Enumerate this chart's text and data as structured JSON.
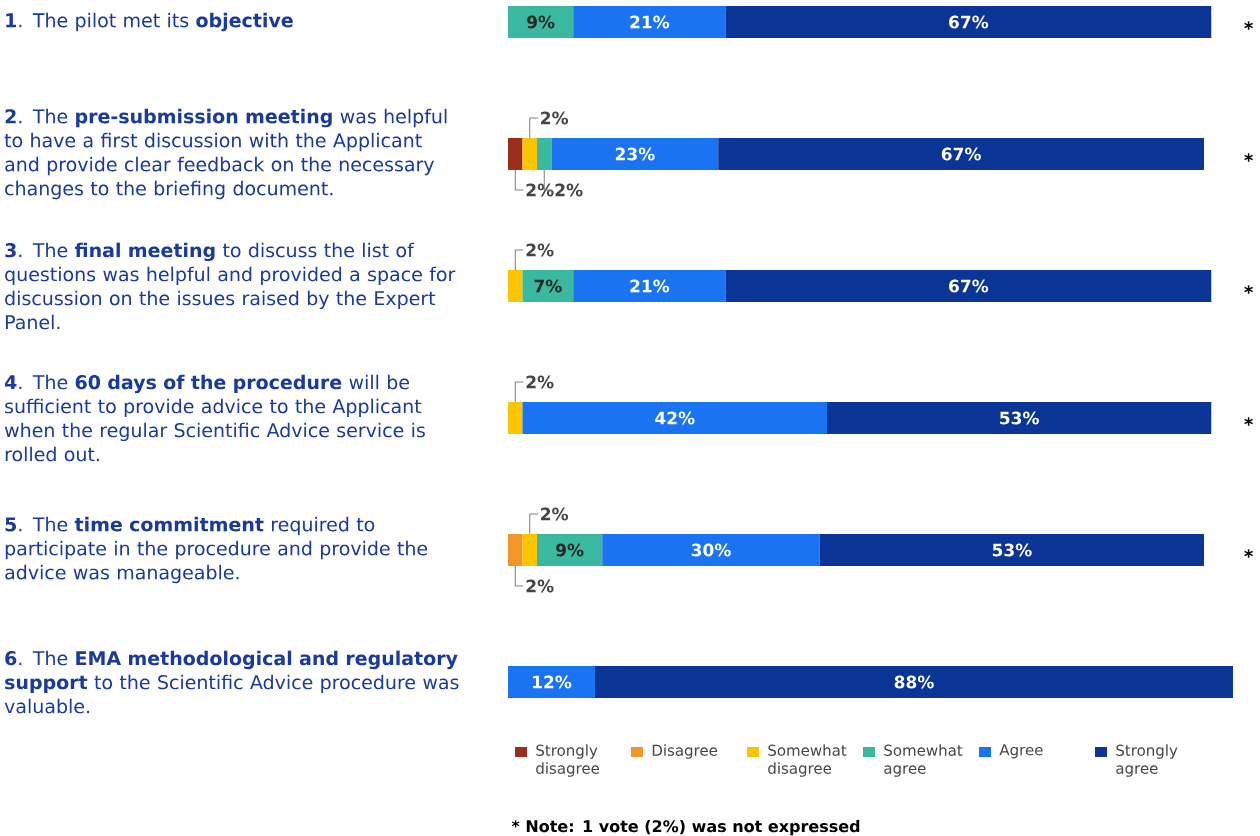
{
  "chart_data": {
    "type": "bar",
    "orientation": "horizontal",
    "stacked": true,
    "legend": "bottom",
    "categories": [
      "**1**. The pilot met its **objective**",
      "**2**. The **pre-submission meeting** was helpful to have a first discussion with the Applicant and provide clear feedback on the necessary changes to the briefing document.",
      "**3**. The **final meeting** to discuss the list of questions was helpful and provided a space for discussion on the issues raised by the Expert Panel.",
      "**4**. The **60 days of the procedure** will be sufficient to provide advice to the Applicant when the regular Scientific Advice service is rolled out.",
      "**5**. The **time commitment** required to participate in the procedure and provide the advice was manageable.",
      "**6**. The **EMA methodological and regulatory support** to the Scientific Advice procedure was valuable."
    ],
    "series": [
      {
        "name": "Strongly disagree",
        "color": "#9b2f1e",
        "values": [
          null,
          2,
          null,
          null,
          null,
          null
        ],
        "value_labels": [
          null,
          "2%",
          null,
          null,
          null,
          null
        ]
      },
      {
        "name": "Disagree",
        "color": "#f0962a",
        "values": [
          null,
          null,
          null,
          null,
          2,
          null
        ],
        "value_labels": [
          null,
          null,
          null,
          null,
          "2%",
          null
        ]
      },
      {
        "name": "Somewhat disagree",
        "color": "#fcc500",
        "values": [
          null,
          2,
          2,
          2,
          2,
          null
        ],
        "value_labels": [
          null,
          "2%",
          "2%",
          "2%",
          "2%",
          null
        ]
      },
      {
        "name": "Somewhat agree",
        "color": "#3bb9a0",
        "values": [
          9,
          2,
          7,
          null,
          9,
          null
        ],
        "value_labels": [
          "9%",
          "2%",
          "7%",
          null,
          "9%",
          null
        ]
      },
      {
        "name": "Agree",
        "color": "#1a73f0",
        "values": [
          21,
          23,
          21,
          42,
          30,
          12
        ],
        "value_labels": [
          "21%",
          "23%",
          "21%",
          "42%",
          "30%",
          "12%"
        ]
      },
      {
        "name": "Strongly agree",
        "color": "#0a3596",
        "values": [
          67,
          67,
          67,
          53,
          53,
          88
        ],
        "value_labels": [
          "67%",
          "67%",
          "67%",
          "53%",
          "53%",
          "88%"
        ]
      }
    ],
    "annotations": [
      "*",
      "*",
      "*",
      "*",
      "*",
      "* Note: 1 vote (2%) was not expressed"
    ]
  }
}
